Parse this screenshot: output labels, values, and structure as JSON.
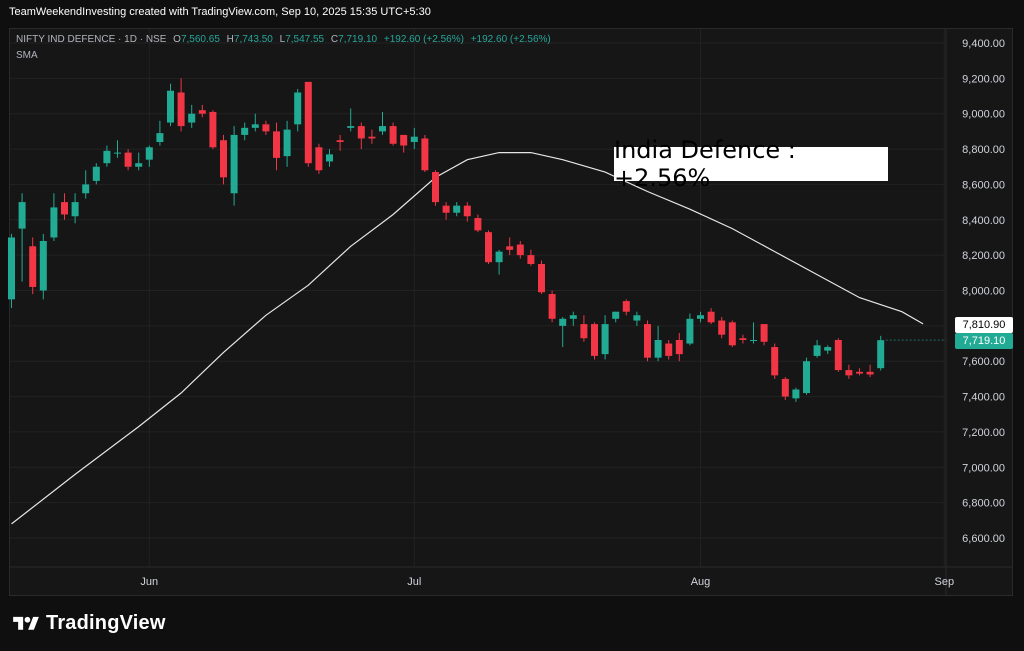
{
  "header": {
    "credit": "TeamWeekendInvesting created with TradingView.com, Sep 10, 2025 15:35 UTC+5:30"
  },
  "legend": {
    "symbol": "NIFTY IND DEFENCE · 1D · NSE",
    "open_label": "O",
    "open": "7,560.65",
    "high_label": "H",
    "high": "7,743.50",
    "low_label": "L",
    "low": "7,547.55",
    "close_label": "C",
    "close": "7,719.10",
    "change": "+192.60 (+2.56%)",
    "change_repeat": "+192.60 (+2.56%)",
    "indicator": "SMA"
  },
  "annotation": "India Defence : +2.56%",
  "price_tags": {
    "sma": "7,810.90",
    "last": "7,719.10"
  },
  "brand": {
    "name": "TradingView"
  },
  "colors": {
    "up": "#22ab94",
    "down": "#f23645",
    "sma": "#e6e6e6",
    "bg": "#161616"
  },
  "chart_data": {
    "type": "candlestick",
    "y_axis": {
      "min": 6500,
      "max": 9500,
      "ticks": [
        6600,
        6800,
        7000,
        7200,
        7400,
        7600,
        7800,
        8000,
        8200,
        8400,
        8600,
        8800,
        9000,
        9200,
        9400
      ],
      "tick_labels": [
        "6,600.00",
        "6,800.00",
        "7,000.00",
        "7,200.00",
        "7,400.00",
        "7,600.00",
        "7,800.00",
        "8,000.00",
        "8,200.00",
        "8,400.00",
        "8,600.00",
        "8,800.00",
        "9,000.00",
        "9,200.00",
        "9,400.00"
      ]
    },
    "x_axis": {
      "labels": [
        {
          "text": "Jun",
          "index": 13
        },
        {
          "text": "Jul",
          "index": 38
        },
        {
          "text": "Aug",
          "index": 65
        },
        {
          "text": "Sep",
          "index": 88
        }
      ]
    },
    "grid": true,
    "candles": [
      {
        "o": 7950,
        "h": 8320,
        "l": 7900,
        "c": 8300
      },
      {
        "o": 8350,
        "h": 8550,
        "l": 8050,
        "c": 8500
      },
      {
        "o": 8250,
        "h": 8300,
        "l": 7980,
        "c": 8020
      },
      {
        "o": 8000,
        "h": 8320,
        "l": 7950,
        "c": 8280
      },
      {
        "o": 8300,
        "h": 8550,
        "l": 8280,
        "c": 8470
      },
      {
        "o": 8500,
        "h": 8550,
        "l": 8400,
        "c": 8430
      },
      {
        "o": 8420,
        "h": 8550,
        "l": 8380,
        "c": 8500
      },
      {
        "o": 8550,
        "h": 8680,
        "l": 8520,
        "c": 8600
      },
      {
        "o": 8620,
        "h": 8720,
        "l": 8600,
        "c": 8700
      },
      {
        "o": 8720,
        "h": 8820,
        "l": 8700,
        "c": 8790
      },
      {
        "o": 8780,
        "h": 8850,
        "l": 8750,
        "c": 8780
      },
      {
        "o": 8780,
        "h": 8800,
        "l": 8680,
        "c": 8700
      },
      {
        "o": 8700,
        "h": 8780,
        "l": 8680,
        "c": 8720
      },
      {
        "o": 8740,
        "h": 8820,
        "l": 8700,
        "c": 8810
      },
      {
        "o": 8840,
        "h": 8960,
        "l": 8820,
        "c": 8890
      },
      {
        "o": 8950,
        "h": 9170,
        "l": 8930,
        "c": 9130
      },
      {
        "o": 9120,
        "h": 9200,
        "l": 8900,
        "c": 8930
      },
      {
        "o": 8950,
        "h": 9050,
        "l": 8920,
        "c": 9000
      },
      {
        "o": 9020,
        "h": 9050,
        "l": 8980,
        "c": 9000
      },
      {
        "o": 9010,
        "h": 9020,
        "l": 8800,
        "c": 8810
      },
      {
        "o": 8850,
        "h": 8880,
        "l": 8600,
        "c": 8640
      },
      {
        "o": 8550,
        "h": 8930,
        "l": 8480,
        "c": 8880
      },
      {
        "o": 8880,
        "h": 8950,
        "l": 8850,
        "c": 8920
      },
      {
        "o": 8920,
        "h": 9000,
        "l": 8900,
        "c": 8940
      },
      {
        "o": 8940,
        "h": 8960,
        "l": 8880,
        "c": 8900
      },
      {
        "o": 8900,
        "h": 8950,
        "l": 8680,
        "c": 8750
      },
      {
        "o": 8760,
        "h": 8960,
        "l": 8700,
        "c": 8910
      },
      {
        "o": 8940,
        "h": 9140,
        "l": 8900,
        "c": 9120
      },
      {
        "o": 9180,
        "h": 9180,
        "l": 8700,
        "c": 8720
      },
      {
        "o": 8810,
        "h": 8830,
        "l": 8660,
        "c": 8680
      },
      {
        "o": 8730,
        "h": 8800,
        "l": 8700,
        "c": 8770
      },
      {
        "o": 8850,
        "h": 8880,
        "l": 8790,
        "c": 8840
      },
      {
        "o": 8920,
        "h": 9030,
        "l": 8900,
        "c": 8930
      },
      {
        "o": 8930,
        "h": 8950,
        "l": 8800,
        "c": 8860
      },
      {
        "o": 8870,
        "h": 8910,
        "l": 8830,
        "c": 8860
      },
      {
        "o": 8900,
        "h": 9010,
        "l": 8880,
        "c": 8930
      },
      {
        "o": 8930,
        "h": 8950,
        "l": 8820,
        "c": 8830
      },
      {
        "o": 8880,
        "h": 8880,
        "l": 8780,
        "c": 8820
      },
      {
        "o": 8840,
        "h": 8920,
        "l": 8800,
        "c": 8870
      },
      {
        "o": 8860,
        "h": 8880,
        "l": 8670,
        "c": 8680
      },
      {
        "o": 8670,
        "h": 8680,
        "l": 8480,
        "c": 8500
      },
      {
        "o": 8480,
        "h": 8500,
        "l": 8400,
        "c": 8440
      },
      {
        "o": 8440,
        "h": 8500,
        "l": 8420,
        "c": 8480
      },
      {
        "o": 8480,
        "h": 8500,
        "l": 8390,
        "c": 8420
      },
      {
        "o": 8410,
        "h": 8430,
        "l": 8330,
        "c": 8340
      },
      {
        "o": 8330,
        "h": 8340,
        "l": 8150,
        "c": 8160
      },
      {
        "o": 8160,
        "h": 8230,
        "l": 8090,
        "c": 8220
      },
      {
        "o": 8250,
        "h": 8300,
        "l": 8200,
        "c": 8230
      },
      {
        "o": 8260,
        "h": 8280,
        "l": 8180,
        "c": 8200
      },
      {
        "o": 8200,
        "h": 8230,
        "l": 8140,
        "c": 8150
      },
      {
        "o": 8150,
        "h": 8170,
        "l": 7980,
        "c": 7990
      },
      {
        "o": 7980,
        "h": 8000,
        "l": 7820,
        "c": 7840
      },
      {
        "o": 7800,
        "h": 7850,
        "l": 7680,
        "c": 7840
      },
      {
        "o": 7840,
        "h": 7880,
        "l": 7800,
        "c": 7860
      },
      {
        "o": 7810,
        "h": 7860,
        "l": 7710,
        "c": 7730
      },
      {
        "o": 7810,
        "h": 7820,
        "l": 7610,
        "c": 7630
      },
      {
        "o": 7640,
        "h": 7860,
        "l": 7610,
        "c": 7810
      },
      {
        "o": 7840,
        "h": 7880,
        "l": 7820,
        "c": 7880
      },
      {
        "o": 7940,
        "h": 7950,
        "l": 7860,
        "c": 7880
      },
      {
        "o": 7830,
        "h": 7880,
        "l": 7800,
        "c": 7860
      },
      {
        "o": 7810,
        "h": 7830,
        "l": 7600,
        "c": 7620
      },
      {
        "o": 7620,
        "h": 7800,
        "l": 7600,
        "c": 7720
      },
      {
        "o": 7700,
        "h": 7720,
        "l": 7610,
        "c": 7630
      },
      {
        "o": 7720,
        "h": 7760,
        "l": 7600,
        "c": 7640
      },
      {
        "o": 7700,
        "h": 7870,
        "l": 7690,
        "c": 7840
      },
      {
        "o": 7840,
        "h": 7880,
        "l": 7820,
        "c": 7860
      },
      {
        "o": 7880,
        "h": 7900,
        "l": 7810,
        "c": 7820
      },
      {
        "o": 7830,
        "h": 7850,
        "l": 7730,
        "c": 7750
      },
      {
        "o": 7820,
        "h": 7830,
        "l": 7680,
        "c": 7690
      },
      {
        "o": 7730,
        "h": 7750,
        "l": 7700,
        "c": 7720
      },
      {
        "o": 7720,
        "h": 7820,
        "l": 7700,
        "c": 7720
      },
      {
        "o": 7810,
        "h": 7810,
        "l": 7690,
        "c": 7710
      },
      {
        "o": 7680,
        "h": 7700,
        "l": 7500,
        "c": 7520
      },
      {
        "o": 7500,
        "h": 7510,
        "l": 7380,
        "c": 7400
      },
      {
        "o": 7390,
        "h": 7450,
        "l": 7370,
        "c": 7440
      },
      {
        "o": 7420,
        "h": 7620,
        "l": 7410,
        "c": 7600
      },
      {
        "o": 7630,
        "h": 7720,
        "l": 7620,
        "c": 7690
      },
      {
        "o": 7660,
        "h": 7690,
        "l": 7640,
        "c": 7680
      },
      {
        "o": 7720,
        "h": 7730,
        "l": 7540,
        "c": 7550
      },
      {
        "o": 7550,
        "h": 7580,
        "l": 7500,
        "c": 7520
      },
      {
        "o": 7540,
        "h": 7560,
        "l": 7520,
        "c": 7530
      },
      {
        "o": 7540,
        "h": 7580,
        "l": 7510,
        "c": 7525
      },
      {
        "o": 7560.65,
        "h": 7743.5,
        "l": 7547.55,
        "c": 7719.1
      }
    ],
    "sma": [
      [
        0,
        6680
      ],
      [
        6,
        6960
      ],
      [
        12,
        7230
      ],
      [
        16,
        7420
      ],
      [
        20,
        7650
      ],
      [
        24,
        7860
      ],
      [
        28,
        8030
      ],
      [
        32,
        8250
      ],
      [
        36,
        8430
      ],
      [
        40,
        8640
      ],
      [
        43,
        8740
      ],
      [
        46,
        8780
      ],
      [
        49,
        8780
      ],
      [
        52,
        8740
      ],
      [
        56,
        8670
      ],
      [
        60,
        8560
      ],
      [
        64,
        8460
      ],
      [
        68,
        8350
      ],
      [
        72,
        8220
      ],
      [
        76,
        8090
      ],
      [
        80,
        7960
      ],
      [
        84,
        7880
      ],
      [
        86,
        7810.9
      ]
    ]
  }
}
